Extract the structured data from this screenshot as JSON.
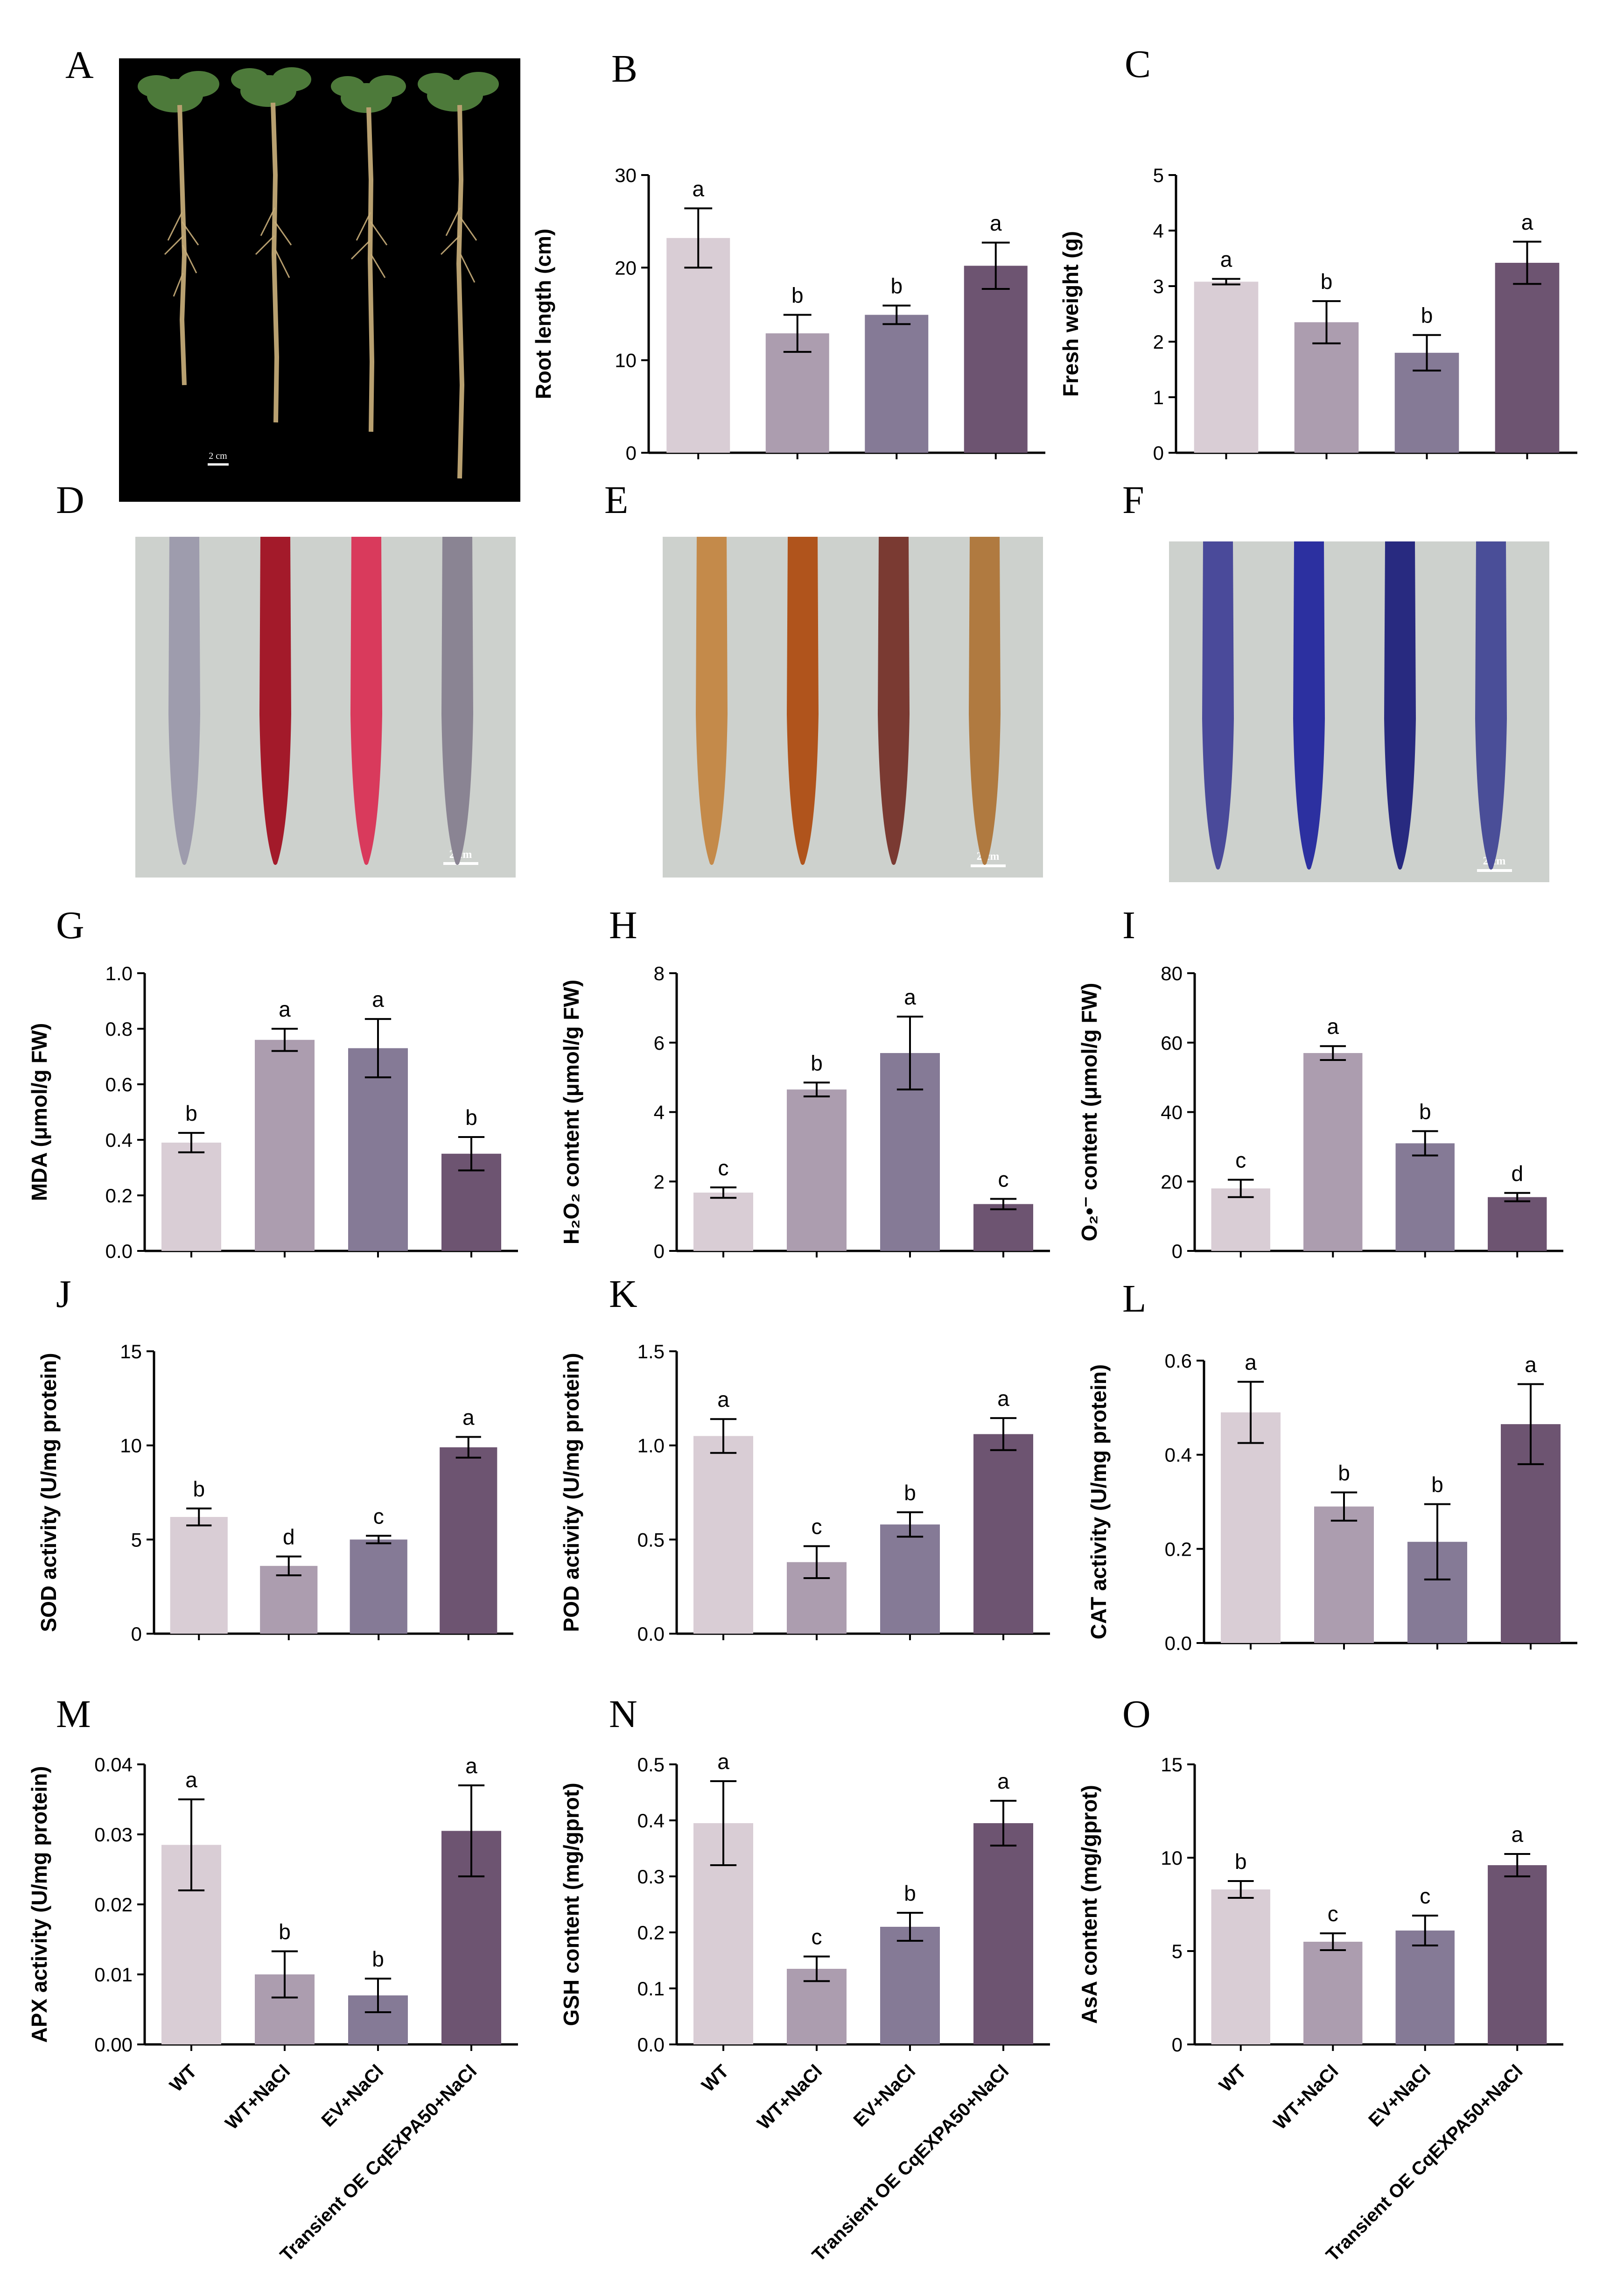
{
  "panels": {
    "A": {
      "label": "A",
      "scale_bar": "2 cm"
    },
    "D": {
      "label": "D",
      "scale_bar": "2 cm"
    },
    "E": {
      "label": "E",
      "scale_bar": "2 cm"
    },
    "F": {
      "label": "F",
      "scale_bar": "2 cm"
    }
  },
  "colors": {
    "bars": [
      "#d9cdd5",
      "#ac9daf",
      "#857a96",
      "#6d5471"
    ],
    "stain_D": [
      "#9e9cad",
      "#a31a2a",
      "#d93a5c",
      "#8a8493"
    ],
    "stain_E": [
      "#c48a4a",
      "#b0541c",
      "#7a3a32",
      "#b07a40"
    ],
    "stain_F": [
      "#4a4a9a",
      "#2c30a0",
      "#282a80",
      "#4a4e98"
    ]
  },
  "x_categories": [
    "WT",
    "WT+NaCl",
    "EV+NaCl",
    "Transient OE CqEXPA50+NaCl"
  ],
  "chart_data": [
    {
      "panel": "B",
      "type": "bar",
      "ylabel": "Root length (cm)",
      "ylim": [
        0,
        30
      ],
      "ticks": [
        "0",
        "10",
        "20",
        "30"
      ],
      "values": [
        23.2,
        12.9,
        14.9,
        20.2
      ],
      "errors": [
        3.2,
        2.0,
        1.0,
        2.5
      ],
      "letters": [
        "a",
        "b",
        "b",
        "a"
      ]
    },
    {
      "panel": "C",
      "type": "bar",
      "ylabel": "Fresh weight (g)",
      "ylim": [
        0,
        5
      ],
      "ticks": [
        "0",
        "1",
        "2",
        "3",
        "4",
        "5"
      ],
      "values": [
        3.08,
        2.35,
        1.8,
        3.42
      ],
      "errors": [
        0.05,
        0.38,
        0.32,
        0.38
      ],
      "letters": [
        "a",
        "b",
        "b",
        "a"
      ]
    },
    {
      "panel": "G",
      "type": "bar",
      "ylabel": "MDA (μmol/g FW)",
      "ylim": [
        0,
        1.0
      ],
      "ticks": [
        "0.0",
        "0.2",
        "0.4",
        "0.6",
        "0.8",
        "1.0"
      ],
      "values": [
        0.39,
        0.76,
        0.73,
        0.35
      ],
      "errors": [
        0.035,
        0.04,
        0.105,
        0.06
      ],
      "letters": [
        "b",
        "a",
        "a",
        "b"
      ]
    },
    {
      "panel": "H",
      "type": "bar",
      "ylabel": "H₂O₂ content (μmol/g FW)",
      "ylim": [
        0,
        8
      ],
      "ticks": [
        "0",
        "2",
        "4",
        "6",
        "8"
      ],
      "values": [
        1.68,
        4.65,
        5.7,
        1.35
      ],
      "errors": [
        0.15,
        0.2,
        1.05,
        0.15
      ],
      "letters": [
        "c",
        "b",
        "a",
        "c"
      ]
    },
    {
      "panel": "I",
      "type": "bar",
      "ylabel": "O₂•⁻ content (μmol/g FW)",
      "ylim": [
        0,
        80
      ],
      "ticks": [
        "0",
        "20",
        "40",
        "60",
        "80"
      ],
      "values": [
        18,
        57,
        31,
        15.5
      ],
      "errors": [
        2.5,
        2,
        3.5,
        1.2
      ],
      "letters": [
        "c",
        "a",
        "b",
        "d"
      ]
    },
    {
      "panel": "J",
      "type": "bar",
      "ylabel": "SOD activity (U/mg protein)",
      "ylim": [
        0,
        15
      ],
      "ticks": [
        "0",
        "5",
        "10",
        "15"
      ],
      "values": [
        6.2,
        3.6,
        5.0,
        9.9
      ],
      "errors": [
        0.45,
        0.5,
        0.2,
        0.55
      ],
      "letters": [
        "b",
        "d",
        "c",
        "a"
      ]
    },
    {
      "panel": "K",
      "type": "bar",
      "ylabel": "POD activity (U/mg protein)",
      "ylim": [
        0,
        1.5
      ],
      "ticks": [
        "0.0",
        "0.5",
        "1.0",
        "1.5"
      ],
      "values": [
        1.05,
        0.38,
        0.58,
        1.06
      ],
      "errors": [
        0.09,
        0.085,
        0.065,
        0.085
      ],
      "letters": [
        "a",
        "c",
        "b",
        "a"
      ]
    },
    {
      "panel": "L",
      "type": "bar",
      "ylabel": "CAT activity (U/mg protein)",
      "ylim": [
        0,
        0.6
      ],
      "ticks": [
        "0.0",
        "0.2",
        "0.4",
        "0.6"
      ],
      "values": [
        0.49,
        0.29,
        0.215,
        0.465
      ],
      "errors": [
        0.065,
        0.03,
        0.08,
        0.085
      ],
      "letters": [
        "a",
        "b",
        "b",
        "a"
      ]
    },
    {
      "panel": "M",
      "type": "bar",
      "ylabel": "APX activity (U/mg protein)",
      "ylim": [
        0,
        0.04
      ],
      "ticks": [
        "0.00",
        "0.01",
        "0.02",
        "0.03",
        "0.04"
      ],
      "values": [
        0.0285,
        0.01,
        0.007,
        0.0305
      ],
      "errors": [
        0.0065,
        0.0033,
        0.0024,
        0.0065
      ],
      "letters": [
        "a",
        "b",
        "b",
        "a"
      ]
    },
    {
      "panel": "N",
      "type": "bar",
      "ylabel": "GSH content (mg/gprot)",
      "ylim": [
        0,
        0.5
      ],
      "ticks": [
        "0.0",
        "0.1",
        "0.2",
        "0.3",
        "0.4",
        "0.5"
      ],
      "values": [
        0.395,
        0.135,
        0.21,
        0.395
      ],
      "errors": [
        0.075,
        0.022,
        0.025,
        0.04
      ],
      "letters": [
        "a",
        "c",
        "b",
        "a"
      ]
    },
    {
      "panel": "O",
      "type": "bar",
      "ylabel": "AsA content (mg/gprot)",
      "ylim": [
        0,
        15
      ],
      "ticks": [
        "0",
        "5",
        "10",
        "15"
      ],
      "values": [
        8.3,
        5.5,
        6.1,
        9.6
      ],
      "errors": [
        0.45,
        0.45,
        0.8,
        0.6
      ],
      "letters": [
        "b",
        "c",
        "c",
        "a"
      ]
    }
  ]
}
